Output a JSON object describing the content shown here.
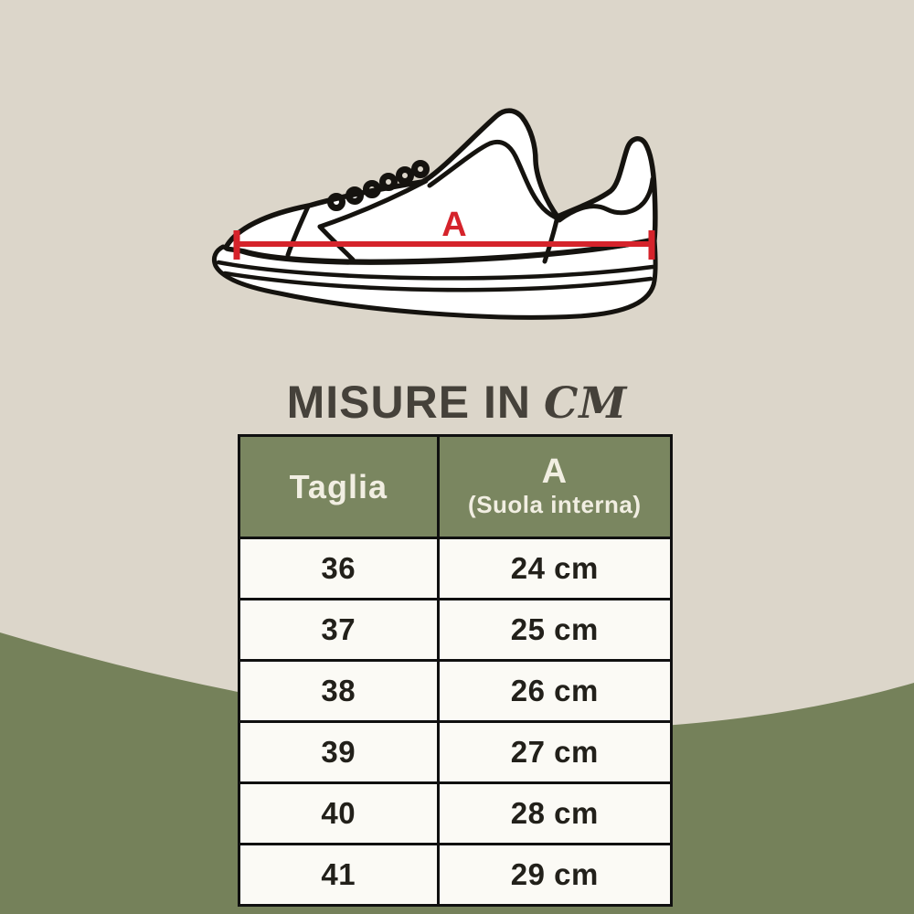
{
  "colors": {
    "bg": "#DCD6CA",
    "green": "#75815A",
    "header_green": "#7A8660",
    "cell": "#FBFAF5",
    "border": "#101010",
    "ink": "#15130F",
    "shoe_fill": "#FFFFFF",
    "red": "#D5232B",
    "title": "#45413A",
    "header_text": "#F1EEE2",
    "cell_text": "#22201A"
  },
  "diagram": {
    "label": "A"
  },
  "title": {
    "main": "MISURE IN",
    "unit": "CM"
  },
  "table": {
    "header": {
      "size_label": "Taglia",
      "measure_label": "A",
      "measure_sub": "(Suola interna)"
    },
    "rows": [
      {
        "size": "36",
        "length": "24 cm"
      },
      {
        "size": "37",
        "length": "25 cm"
      },
      {
        "size": "38",
        "length": "26 cm"
      },
      {
        "size": "39",
        "length": "27 cm"
      },
      {
        "size": "40",
        "length": "28 cm"
      },
      {
        "size": "41",
        "length": "29 cm"
      }
    ]
  }
}
